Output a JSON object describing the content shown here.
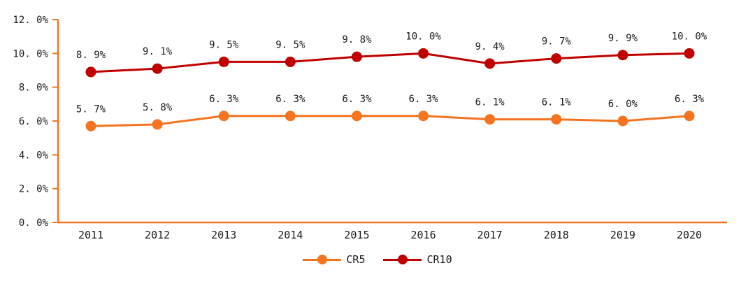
{
  "chart_data": {
    "type": "line",
    "categories": [
      "2011",
      "2012",
      "2013",
      "2014",
      "2015",
      "2016",
      "2017",
      "2018",
      "2019",
      "2020"
    ],
    "series": [
      {
        "name": "CR5",
        "color": "#F4741F",
        "values": [
          5.7,
          5.8,
          6.3,
          6.3,
          6.3,
          6.3,
          6.1,
          6.1,
          6.0,
          6.3
        ],
        "point_labels": [
          "5. 7%",
          "5. 8%",
          "6. 3%",
          "6. 3%",
          "6. 3%",
          "6. 3%",
          "6. 1%",
          "6. 1%",
          "6. 0%",
          "6. 3%"
        ]
      },
      {
        "name": "CR10",
        "color": "#C00000",
        "values": [
          8.9,
          9.1,
          9.5,
          9.5,
          9.8,
          10.0,
          9.4,
          9.7,
          9.9,
          10.0
        ],
        "point_labels": [
          "8. 9%",
          "9. 1%",
          "9. 5%",
          "9. 5%",
          "9. 8%",
          "10. 0%",
          "9. 4%",
          "9. 7%",
          "9. 9%",
          "10. 0%"
        ]
      }
    ],
    "ylim": [
      0,
      12
    ],
    "y_tick_step": 2,
    "y_tick_labels": [
      "0. 0%",
      "2. 0%",
      "4. 0%",
      "6. 0%",
      "8. 0%",
      "10. 0%",
      "12. 0%"
    ],
    "grid": false,
    "legend_position": "bottom-center",
    "axis_color": "#F4741F",
    "text_color": "#1a1a1a"
  }
}
